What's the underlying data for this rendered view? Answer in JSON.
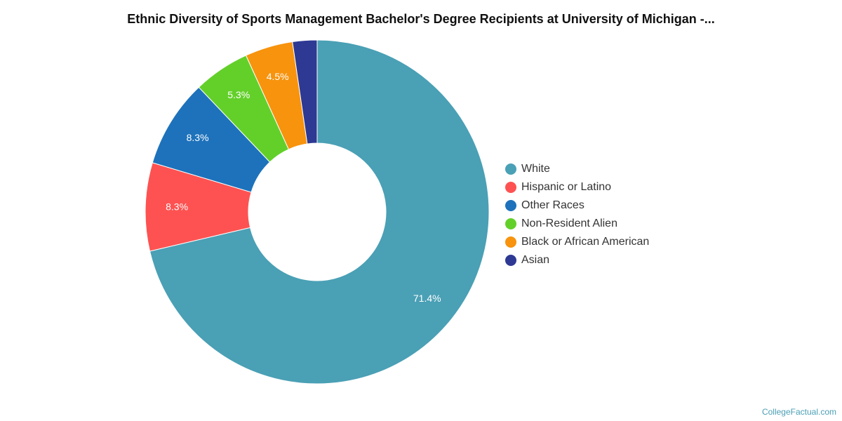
{
  "chart_data": {
    "type": "pie",
    "title": "Ethnic Diversity of Sports Management Bachelor's Degree Recipients at University of Michigan -...",
    "categories": [
      "White",
      "Hispanic or Latino",
      "Other Races",
      "Non-Resident Alien",
      "Black or African American",
      "Asian"
    ],
    "values": [
      71.4,
      8.3,
      8.3,
      5.3,
      4.5,
      2.3
    ],
    "labels": [
      "71.4%",
      "8.3%",
      "8.3%",
      "5.3%",
      "4.5%",
      ""
    ],
    "colors": [
      "#4aa0b5",
      "#fe5252",
      "#1d72bb",
      "#63d02a",
      "#f7930d",
      "#2d3993"
    ],
    "legend_position": "right",
    "donut": true
  },
  "watermark": "CollegeFactual.com"
}
